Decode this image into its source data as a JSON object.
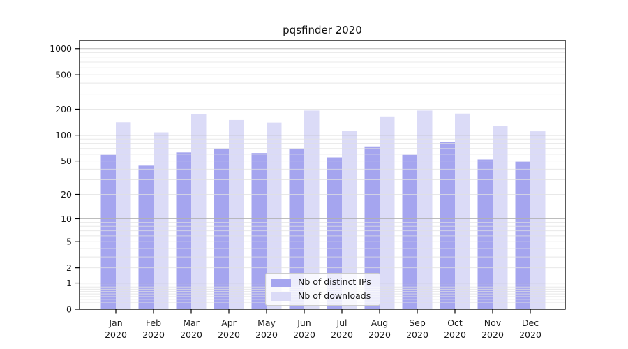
{
  "chart_data": {
    "type": "bar",
    "title": "pqsfinder 2020",
    "categories": [
      "Jan",
      "Feb",
      "Mar",
      "Apr",
      "May",
      "Jun",
      "Jul",
      "Aug",
      "Sep",
      "Oct",
      "Nov",
      "Dec"
    ],
    "year_label": "2020",
    "series": [
      {
        "name": "Nb of distinct IPs",
        "color": "#a5a5ef",
        "values": [
          59,
          44,
          63,
          70,
          62,
          70,
          55,
          74,
          59,
          83,
          52,
          49
        ]
      },
      {
        "name": "Nb of downloads",
        "color": "#dbdbf7",
        "values": [
          141,
          108,
          175,
          150,
          140,
          193,
          113,
          165,
          193,
          178,
          129,
          111
        ]
      }
    ],
    "y_axis": {
      "scale": "log1p",
      "ticks": [
        0,
        1,
        2,
        5,
        10,
        20,
        50,
        100,
        200,
        500,
        1000
      ],
      "ylim": [
        0,
        1250
      ]
    },
    "x_axis": {
      "label_line2": "2020"
    },
    "legend": {
      "position": "inside-bottom-center"
    },
    "grid": {
      "major_color": "#b0b0b0",
      "minor_color": "#e0e0e0"
    },
    "frame_color": "#000000",
    "background": "#ffffff"
  }
}
